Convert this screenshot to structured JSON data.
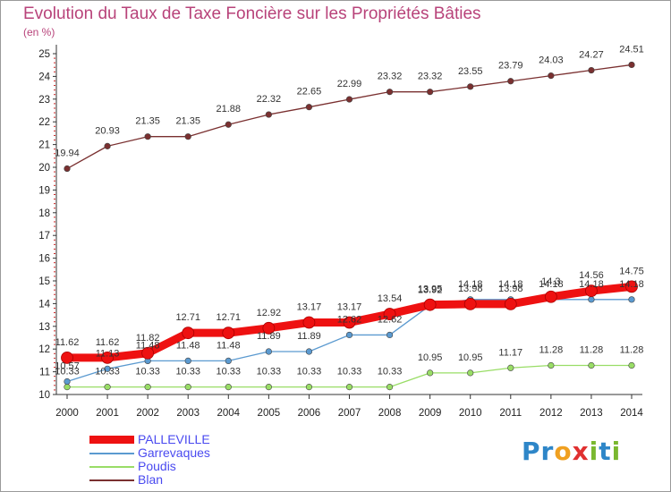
{
  "title": "Evolution du Taux de Taxe Foncière sur les Propriétés Bâties",
  "subtitle": "(en %)",
  "logo": {
    "text": "Proxiti",
    "letters": [
      "P",
      "r",
      "o",
      "x",
      "i",
      "t",
      "i"
    ],
    "colors": [
      "#2e86c8",
      "#2e86c8",
      "#f0a020",
      "#e03030",
      "#7ab830",
      "#2e86c8",
      "#7ab830"
    ]
  },
  "chart_data": {
    "type": "line",
    "x": [
      2000,
      2001,
      2002,
      2003,
      2004,
      2005,
      2006,
      2007,
      2008,
      2009,
      2010,
      2011,
      2012,
      2013,
      2014
    ],
    "x_tick_labels": [
      "2000",
      "2001",
      "2002",
      "2003",
      "2004",
      "2005",
      "2006",
      "2007",
      "2008",
      "2009",
      "2010",
      "2011",
      "2012",
      "2013",
      "2014"
    ],
    "ylim": [
      10,
      25
    ],
    "y_ticks": [
      10,
      11,
      12,
      13,
      14,
      15,
      16,
      17,
      18,
      19,
      20,
      21,
      22,
      23,
      24,
      25
    ],
    "y_tick_labels": [
      "10",
      "11",
      "12",
      "13",
      "14",
      "15",
      "16",
      "17",
      "18",
      "19",
      "20",
      "21",
      "22",
      "23",
      "24",
      "25"
    ],
    "grid": false,
    "legend_position": "bottom-left",
    "series": [
      {
        "name": "PALLEVILLE",
        "color": "#ee1111",
        "values": [
          11.62,
          11.62,
          11.82,
          12.71,
          12.71,
          12.92,
          13.17,
          13.17,
          13.54,
          13.95,
          13.98,
          13.98,
          14.3,
          14.56,
          14.75
        ],
        "labels": [
          "11.62",
          "11.62",
          "11.82",
          "12.71",
          "12.71",
          "12.92",
          "13.17",
          "13.17",
          "13.54",
          "13.95",
          "13.98",
          "13.98",
          "14.3",
          "14.56",
          "14.75"
        ]
      },
      {
        "name": "Garrevaques",
        "color": "#5b9ad0",
        "values": [
          10.57,
          11.13,
          11.48,
          11.48,
          11.48,
          11.89,
          11.89,
          12.62,
          12.62,
          13.92,
          14.18,
          14.18,
          14.18,
          14.18,
          14.18
        ],
        "labels": [
          "10.57",
          "11.13",
          "11.48",
          "11.48",
          "11.48",
          "11.89",
          "11.89",
          "12.62",
          "12.62",
          "13.92",
          "14.18",
          "14.18",
          "14.18",
          "14.18",
          "14.18"
        ]
      },
      {
        "name": "Poudis",
        "color": "#99dd66",
        "values": [
          10.33,
          10.33,
          10.33,
          10.33,
          10.33,
          10.33,
          10.33,
          10.33,
          10.33,
          10.95,
          10.95,
          11.17,
          11.28,
          11.28,
          11.28
        ],
        "labels": [
          "10.33",
          "10.33",
          "10.33",
          "10.33",
          "10.33",
          "10.33",
          "10.33",
          "10.33",
          "10.33",
          "10.95",
          "10.95",
          "11.17",
          "11.28",
          "11.28",
          "11.28"
        ]
      },
      {
        "name": "Blan",
        "color": "#7a3030",
        "values": [
          19.94,
          20.93,
          21.35,
          21.35,
          21.88,
          22.32,
          22.65,
          22.99,
          23.32,
          23.32,
          23.55,
          23.79,
          24.03,
          24.27,
          24.51
        ],
        "labels": [
          "19.94",
          "20.93",
          "21.35",
          "21.35",
          "21.88",
          "22.32",
          "22.65",
          "22.99",
          "23.32",
          "23.32",
          "23.55",
          "23.79",
          "24.03",
          "24.27",
          "24.51"
        ]
      }
    ]
  }
}
